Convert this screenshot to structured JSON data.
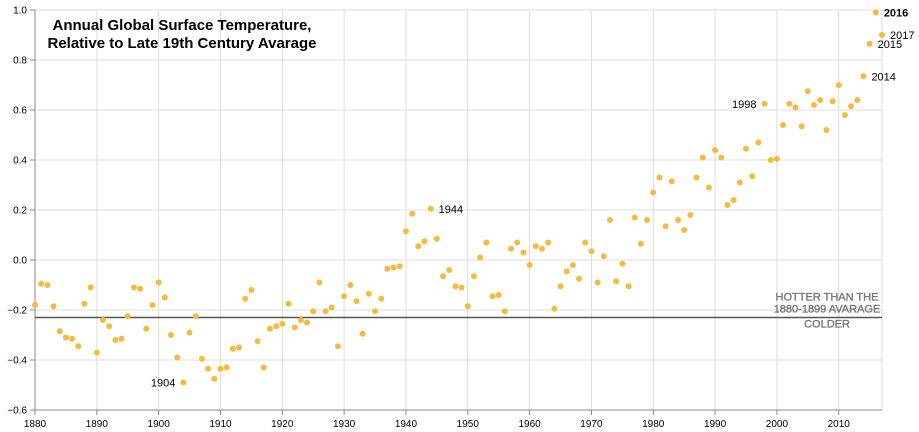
{
  "colors": {
    "point": "#f8b93e",
    "grid": "#dddddd",
    "reference_line": "#555555",
    "reference_text": "#8a8a8a"
  },
  "chart_data": {
    "type": "scatter",
    "title": [
      "Annual Global Surface Temperature,",
      "Relative to Late 19th Century Avarage"
    ],
    "xlabel": "",
    "ylabel": "",
    "xlim": [
      1880,
      2017
    ],
    "ylim": [
      -0.6,
      1.0
    ],
    "x_ticks": [
      1880,
      1890,
      1900,
      1910,
      1920,
      1930,
      1940,
      1950,
      1960,
      1970,
      1980,
      1990,
      2000,
      2010
    ],
    "y_ticks": [
      -0.6,
      -0.4,
      -0.2,
      0.0,
      0.2,
      0.4,
      0.6,
      0.8,
      1.0
    ],
    "y_tick_labels": [
      "−0.6",
      "−0.4",
      "−0.2",
      "0.0",
      "0.2",
      "0.4",
      "0.6",
      "0.8",
      "1.0"
    ],
    "grid": true,
    "reference_line": {
      "y": -0.23,
      "labels": [
        "HOTTER THAN THE",
        "1880-1899 AVARAGE",
        "COLDER"
      ]
    },
    "annotations": [
      {
        "year": 1904,
        "text": "1904",
        "side": "left",
        "bold": false
      },
      {
        "year": 1944,
        "text": "1944",
        "side": "right",
        "bold": false
      },
      {
        "year": 1998,
        "text": "1998",
        "side": "left",
        "bold": false
      },
      {
        "year": 2014,
        "text": "2014",
        "side": "right",
        "bold": false
      },
      {
        "year": 2015,
        "text": "2015",
        "side": "right",
        "bold": false
      },
      {
        "year": 2016,
        "text": "2016",
        "side": "right",
        "bold": true
      },
      {
        "year": 2017,
        "text": "2017",
        "side": "right",
        "bold": false
      }
    ],
    "points": [
      {
        "x": 1880,
        "y": -0.18
      },
      {
        "x": 1881,
        "y": -0.095
      },
      {
        "x": 1882,
        "y": -0.1
      },
      {
        "x": 1883,
        "y": -0.185
      },
      {
        "x": 1884,
        "y": -0.285
      },
      {
        "x": 1885,
        "y": -0.31
      },
      {
        "x": 1886,
        "y": -0.315
      },
      {
        "x": 1887,
        "y": -0.345
      },
      {
        "x": 1888,
        "y": -0.175
      },
      {
        "x": 1889,
        "y": -0.11
      },
      {
        "x": 1890,
        "y": -0.37
      },
      {
        "x": 1891,
        "y": -0.24
      },
      {
        "x": 1892,
        "y": -0.265
      },
      {
        "x": 1893,
        "y": -0.32
      },
      {
        "x": 1894,
        "y": -0.315
      },
      {
        "x": 1895,
        "y": -0.225
      },
      {
        "x": 1896,
        "y": -0.11
      },
      {
        "x": 1897,
        "y": -0.115
      },
      {
        "x": 1898,
        "y": -0.275
      },
      {
        "x": 1899,
        "y": -0.18
      },
      {
        "x": 1900,
        "y": -0.09
      },
      {
        "x": 1901,
        "y": -0.15
      },
      {
        "x": 1902,
        "y": -0.3
      },
      {
        "x": 1903,
        "y": -0.39
      },
      {
        "x": 1904,
        "y": -0.49
      },
      {
        "x": 1905,
        "y": -0.29
      },
      {
        "x": 1906,
        "y": -0.225
      },
      {
        "x": 1907,
        "y": -0.395
      },
      {
        "x": 1908,
        "y": -0.435
      },
      {
        "x": 1909,
        "y": -0.475
      },
      {
        "x": 1910,
        "y": -0.435
      },
      {
        "x": 1911,
        "y": -0.43
      },
      {
        "x": 1912,
        "y": -0.355
      },
      {
        "x": 1913,
        "y": -0.35
      },
      {
        "x": 1914,
        "y": -0.155
      },
      {
        "x": 1915,
        "y": -0.12
      },
      {
        "x": 1916,
        "y": -0.325
      },
      {
        "x": 1917,
        "y": -0.43
      },
      {
        "x": 1918,
        "y": -0.275
      },
      {
        "x": 1919,
        "y": -0.265
      },
      {
        "x": 1920,
        "y": -0.255
      },
      {
        "x": 1921,
        "y": -0.175
      },
      {
        "x": 1922,
        "y": -0.27
      },
      {
        "x": 1923,
        "y": -0.24
      },
      {
        "x": 1924,
        "y": -0.25
      },
      {
        "x": 1925,
        "y": -0.205
      },
      {
        "x": 1926,
        "y": -0.09
      },
      {
        "x": 1927,
        "y": -0.205
      },
      {
        "x": 1928,
        "y": -0.19
      },
      {
        "x": 1929,
        "y": -0.345
      },
      {
        "x": 1930,
        "y": -0.145
      },
      {
        "x": 1931,
        "y": -0.1
      },
      {
        "x": 1932,
        "y": -0.165
      },
      {
        "x": 1933,
        "y": -0.295
      },
      {
        "x": 1934,
        "y": -0.135
      },
      {
        "x": 1935,
        "y": -0.205
      },
      {
        "x": 1936,
        "y": -0.155
      },
      {
        "x": 1937,
        "y": -0.035
      },
      {
        "x": 1938,
        "y": -0.03
      },
      {
        "x": 1939,
        "y": -0.025
      },
      {
        "x": 1940,
        "y": 0.115
      },
      {
        "x": 1941,
        "y": 0.185
      },
      {
        "x": 1942,
        "y": 0.055
      },
      {
        "x": 1943,
        "y": 0.075
      },
      {
        "x": 1944,
        "y": 0.205
      },
      {
        "x": 1945,
        "y": 0.085
      },
      {
        "x": 1946,
        "y": -0.065
      },
      {
        "x": 1947,
        "y": -0.04
      },
      {
        "x": 1948,
        "y": -0.105
      },
      {
        "x": 1949,
        "y": -0.11
      },
      {
        "x": 1950,
        "y": -0.185
      },
      {
        "x": 1951,
        "y": -0.065
      },
      {
        "x": 1952,
        "y": 0.01
      },
      {
        "x": 1953,
        "y": 0.07
      },
      {
        "x": 1954,
        "y": -0.145
      },
      {
        "x": 1955,
        "y": -0.14
      },
      {
        "x": 1956,
        "y": -0.205
      },
      {
        "x": 1957,
        "y": 0.045
      },
      {
        "x": 1958,
        "y": 0.07
      },
      {
        "x": 1959,
        "y": 0.03
      },
      {
        "x": 1960,
        "y": -0.02
      },
      {
        "x": 1961,
        "y": 0.055
      },
      {
        "x": 1962,
        "y": 0.045
      },
      {
        "x": 1963,
        "y": 0.07
      },
      {
        "x": 1964,
        "y": -0.195
      },
      {
        "x": 1965,
        "y": -0.105
      },
      {
        "x": 1966,
        "y": -0.045
      },
      {
        "x": 1967,
        "y": -0.02
      },
      {
        "x": 1968,
        "y": -0.075
      },
      {
        "x": 1969,
        "y": 0.07
      },
      {
        "x": 1970,
        "y": 0.035
      },
      {
        "x": 1971,
        "y": -0.09
      },
      {
        "x": 1972,
        "y": 0.015
      },
      {
        "x": 1973,
        "y": 0.16
      },
      {
        "x": 1974,
        "y": -0.085
      },
      {
        "x": 1975,
        "y": -0.015
      },
      {
        "x": 1976,
        "y": -0.105
      },
      {
        "x": 1977,
        "y": 0.17
      },
      {
        "x": 1978,
        "y": 0.065
      },
      {
        "x": 1979,
        "y": 0.16
      },
      {
        "x": 1980,
        "y": 0.27
      },
      {
        "x": 1981,
        "y": 0.33
      },
      {
        "x": 1982,
        "y": 0.135
      },
      {
        "x": 1983,
        "y": 0.315
      },
      {
        "x": 1984,
        "y": 0.16
      },
      {
        "x": 1985,
        "y": 0.12
      },
      {
        "x": 1986,
        "y": 0.18
      },
      {
        "x": 1987,
        "y": 0.33
      },
      {
        "x": 1988,
        "y": 0.41
      },
      {
        "x": 1989,
        "y": 0.29
      },
      {
        "x": 1990,
        "y": 0.44
      },
      {
        "x": 1991,
        "y": 0.41
      },
      {
        "x": 1992,
        "y": 0.22
      },
      {
        "x": 1993,
        "y": 0.24
      },
      {
        "x": 1994,
        "y": 0.31
      },
      {
        "x": 1995,
        "y": 0.445
      },
      {
        "x": 1996,
        "y": 0.335
      },
      {
        "x": 1997,
        "y": 0.47
      },
      {
        "x": 1998,
        "y": 0.625
      },
      {
        "x": 1999,
        "y": 0.4
      },
      {
        "x": 2000,
        "y": 0.405
      },
      {
        "x": 2001,
        "y": 0.54
      },
      {
        "x": 2002,
        "y": 0.625
      },
      {
        "x": 2003,
        "y": 0.61
      },
      {
        "x": 2004,
        "y": 0.535
      },
      {
        "x": 2005,
        "y": 0.675
      },
      {
        "x": 2006,
        "y": 0.62
      },
      {
        "x": 2007,
        "y": 0.64
      },
      {
        "x": 2008,
        "y": 0.52
      },
      {
        "x": 2009,
        "y": 0.635
      },
      {
        "x": 2010,
        "y": 0.7
      },
      {
        "x": 2011,
        "y": 0.58
      },
      {
        "x": 2012,
        "y": 0.615
      },
      {
        "x": 2013,
        "y": 0.64
      },
      {
        "x": 2014,
        "y": 0.735
      },
      {
        "x": 2015,
        "y": 0.865
      },
      {
        "x": 2016,
        "y": 0.99
      },
      {
        "x": 2017,
        "y": 0.9
      }
    ]
  }
}
